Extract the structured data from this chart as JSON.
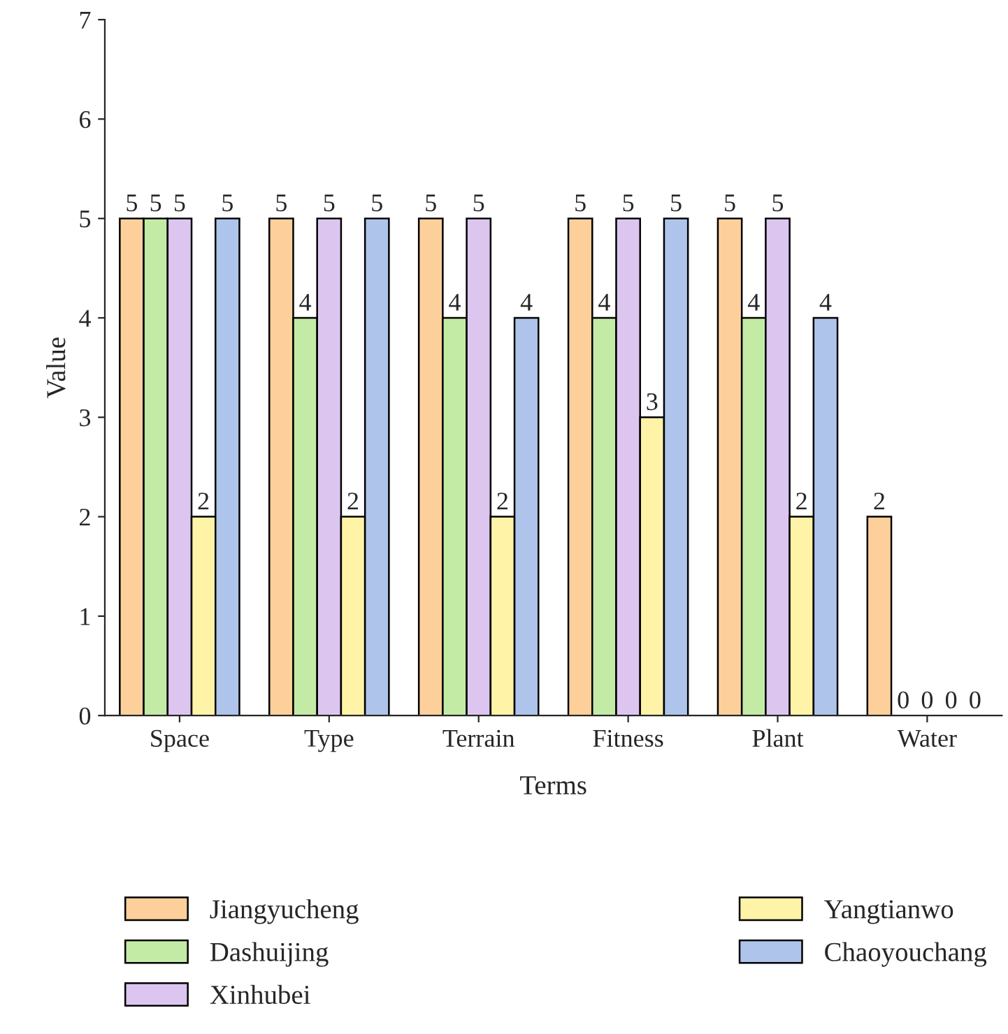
{
  "chart_data": {
    "type": "bar",
    "xlabel": "Terms",
    "ylabel": "Value",
    "categories": [
      "Space",
      "Type",
      "Terrain",
      "Fitness",
      "Plant",
      "Water"
    ],
    "series": [
      {
        "name": "Jiangyucheng",
        "color": "#fdd09b",
        "values": [
          5,
          5,
          5,
          5,
          5,
          2
        ]
      },
      {
        "name": "Dashuijing",
        "color": "#c3eba6",
        "values": [
          5,
          4,
          4,
          4,
          4,
          0
        ]
      },
      {
        "name": "Xinhubei",
        "color": "#dcc6f0",
        "values": [
          5,
          5,
          5,
          5,
          5,
          0
        ]
      },
      {
        "name": "Yangtianwo",
        "color": "#fff3a8",
        "values": [
          2,
          2,
          2,
          3,
          2,
          0
        ]
      },
      {
        "name": "Chaoyouchang",
        "color": "#afc4ea",
        "values": [
          5,
          5,
          4,
          5,
          4,
          0
        ]
      }
    ],
    "ylim": [
      0,
      7
    ],
    "yticks": [
      0,
      1,
      2,
      3,
      4,
      5,
      6,
      7
    ],
    "data_labels": true,
    "grid": false,
    "legend": "bottom"
  }
}
